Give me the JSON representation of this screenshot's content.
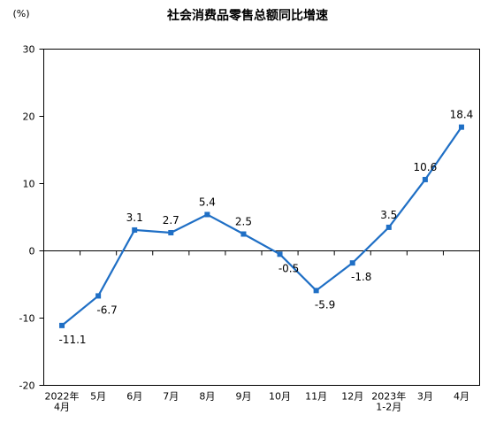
{
  "chart_data": {
    "type": "line",
    "title": "社会消费品零售总额同比增速",
    "unit_label": "(%)",
    "categories": [
      [
        "2022年",
        "4月"
      ],
      [
        "5月"
      ],
      [
        "6月"
      ],
      [
        "7月"
      ],
      [
        "8月"
      ],
      [
        "9月"
      ],
      [
        "10月"
      ],
      [
        "11月"
      ],
      [
        "12月"
      ],
      [
        "2023年",
        "1-2月"
      ],
      [
        "3月"
      ],
      [
        "4月"
      ]
    ],
    "series": [
      {
        "values": [
          -11.1,
          -6.7,
          3.1,
          2.7,
          5.4,
          2.5,
          -0.5,
          -5.9,
          -1.8,
          3.5,
          10.6,
          18.4
        ]
      }
    ],
    "data_labels": [
      "-11.1",
      "-6.7",
      "3.1",
      "2.7",
      "5.4",
      "2.5",
      "-0.5",
      "-5.9",
      "-1.8",
      "3.5",
      "10.6",
      "18.4"
    ],
    "label_positions": [
      "below",
      "below",
      "above",
      "above",
      "above",
      "above",
      "below",
      "below",
      "below",
      "above",
      "above",
      "above"
    ],
    "yticks": [
      30,
      20,
      10,
      0,
      -10,
      -20
    ],
    "ylim": [
      -20,
      30
    ],
    "grid": false,
    "line_color": "#1f6fc5",
    "marker": "square"
  }
}
